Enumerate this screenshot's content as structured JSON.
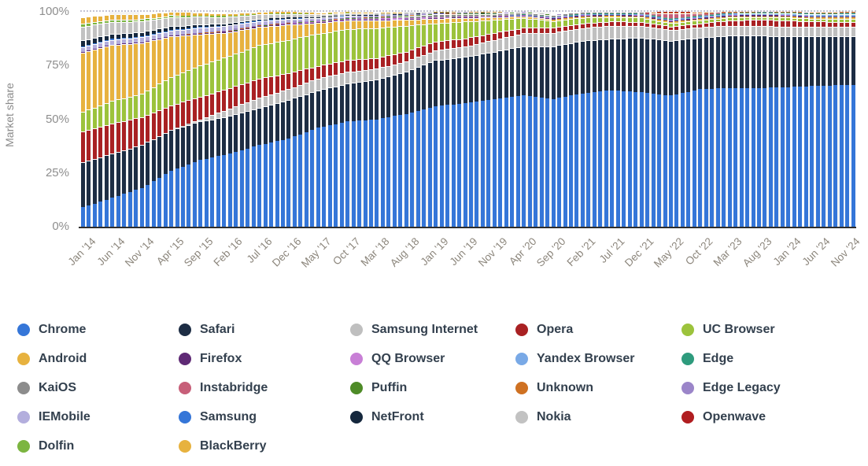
{
  "y_axis": {
    "title": "Market share",
    "ticks": [
      "0%",
      "25%",
      "50%",
      "75%",
      "100%"
    ]
  },
  "chart_data": {
    "type": "bar",
    "stacked": true,
    "unit": "percent",
    "ylim": [
      0,
      100
    ],
    "grid": "dotted line at 100% only",
    "legend_position": "bottom",
    "x_range": {
      "start": "Jan 2014",
      "end": "Dec 2024",
      "months": 132
    },
    "anchor_step_months": 5,
    "x_tick_labels": [
      "Jan '14",
      "Jun '14",
      "Nov '14",
      "Apr '15",
      "Sep '15",
      "Feb '16",
      "Jul '16",
      "Dec '16",
      "May '17",
      "Oct '17",
      "Mar '18",
      "Aug '18",
      "Jan '19",
      "Jun '19",
      "Nov '19",
      "Apr '20",
      "Sep '20",
      "Feb '21",
      "Jul '21",
      "Dec '21",
      "May '22",
      "Oct '22",
      "Mar '23",
      "Aug '23",
      "Jan '24",
      "Jun '24",
      "Nov '24"
    ],
    "series": [
      {
        "name": "Chrome",
        "color": "#3576d8",
        "anchors": [
          9,
          13.5,
          18,
          26,
          31,
          34,
          38,
          41,
          46,
          49,
          50,
          52.5,
          56,
          57.5,
          59.5,
          61,
          59.5,
          62,
          63.5,
          62.5,
          61,
          64,
          64.5,
          64.5,
          65,
          65.5,
          66
        ]
      },
      {
        "name": "Safari",
        "color": "#1d2d44",
        "anchors": [
          21,
          20.5,
          20,
          19,
          18,
          17.5,
          17.5,
          18,
          17.5,
          17.5,
          18.5,
          19.5,
          21.5,
          21.5,
          22,
          23,
          24.5,
          24.5,
          24,
          25.5,
          25.5,
          24,
          24.5,
          24.5,
          23.5,
          23,
          22.8
        ]
      },
      {
        "name": "Samsung Internet",
        "color": "#bfbfbf",
        "anchors": [
          0,
          0,
          0,
          0,
          1,
          3.5,
          4.5,
          5,
          5.5,
          5.5,
          5,
          5,
          4.5,
          4.8,
          5.5,
          6,
          6.3,
          6,
          6,
          5.5,
          5,
          4.8,
          4.6,
          4.5,
          4.5,
          4.4,
          4.3
        ]
      },
      {
        "name": "Opera",
        "color": "#a92123",
        "anchors": [
          14.5,
          14,
          13,
          11.5,
          10.5,
          9.5,
          9,
          7.5,
          5.8,
          5.5,
          5,
          4.5,
          4.2,
          3.8,
          3.2,
          2.6,
          2.3,
          2.1,
          2,
          1.9,
          1.7,
          1.8,
          2.4,
          2.8,
          3,
          2.6,
          2.2
        ]
      },
      {
        "name": "UC Browser",
        "color": "#9cc33c",
        "anchors": [
          9,
          10.5,
          11,
          13,
          14.5,
          15,
          15.5,
          15.5,
          15,
          14.5,
          14,
          12,
          8.5,
          7.9,
          6,
          4.5,
          3.2,
          2.6,
          2.1,
          1.9,
          1.6,
          1.5,
          1.4,
          1.3,
          1.3,
          1.2,
          1.3
        ]
      },
      {
        "name": "Android",
        "color": "#e7b23f",
        "anchors": [
          27.5,
          26,
          23.5,
          19,
          14.5,
          11,
          8.5,
          7,
          5,
          4,
          3.5,
          2.8,
          2.1,
          1.6,
          1.2,
          0.9,
          0.7,
          0.6,
          0.5,
          0.5,
          0.5,
          0.5,
          0.4,
          0.4,
          0.5,
          0.6,
          0.7
        ]
      },
      {
        "name": "Firefox",
        "color": "#5f2a75",
        "anchors": [
          0.3,
          0.3,
          0.4,
          0.4,
          0.4,
          0.4,
          0.4,
          0.4,
          0.3,
          0.3,
          0.3,
          0.3,
          0.3,
          0.3,
          0.3,
          0.3,
          0.5,
          0.5,
          0.5,
          0.5,
          0.5,
          0.5,
          0.5,
          0.5,
          0.5,
          0.5,
          0.5
        ]
      },
      {
        "name": "QQ Browser",
        "color": "#c87fd6",
        "anchors": [
          0,
          0,
          0,
          0,
          0,
          0,
          0,
          0.2,
          0.4,
          0.5,
          0.6,
          0.5,
          0.4,
          0.3,
          0.2,
          0.2,
          0.2,
          0.2,
          0.1,
          0.1,
          0.1,
          0.1,
          0.1,
          0.1,
          0.1,
          0.1,
          0.1
        ]
      },
      {
        "name": "Yandex Browser",
        "color": "#79a9e6",
        "anchors": [
          0,
          0,
          0,
          0,
          0,
          0,
          0,
          0,
          0,
          0,
          0,
          0,
          0,
          0,
          0.1,
          0.2,
          0.3,
          0.4,
          0.4,
          0.5,
          0.5,
          0.6,
          0.7,
          0.8,
          0.8,
          0.9,
          1
        ]
      },
      {
        "name": "Edge",
        "color": "#2e9b7d",
        "anchors": [
          0,
          0,
          0,
          0,
          0,
          0,
          0,
          0,
          0,
          0,
          0,
          0,
          0,
          0,
          0,
          0.1,
          0.1,
          0.2,
          0.2,
          0.2,
          0.3,
          0.3,
          0.3,
          0.3,
          0.4,
          0.4,
          0.5
        ]
      },
      {
        "name": "KaiOS",
        "color": "#8c8c8c",
        "anchors": [
          0,
          0,
          0,
          0,
          0,
          0,
          0,
          0,
          0,
          0,
          0.3,
          0.9,
          1.3,
          1.4,
          1.1,
          0.9,
          0.8,
          0.6,
          0.5,
          0.4,
          0.3,
          0.3,
          0.25,
          0.2,
          0.2,
          0.15,
          0.15
        ]
      },
      {
        "name": "Instabridge",
        "color": "#c75f79",
        "anchors": [
          0,
          0,
          0,
          0,
          0,
          0,
          0,
          0,
          0,
          0,
          0,
          0,
          0,
          0,
          0,
          0,
          0,
          0,
          0,
          0,
          2.2,
          0.9,
          0,
          0,
          0,
          0,
          0
        ]
      },
      {
        "name": "Puffin",
        "color": "#4e8b27",
        "anchors": [
          0,
          0,
          0,
          0,
          0,
          0.1,
          0.1,
          0.1,
          0.2,
          0.2,
          0.2,
          0.2,
          0.1,
          0.1,
          0.1,
          0.1,
          0.1,
          0,
          0,
          0,
          0,
          0,
          0,
          0,
          0,
          0,
          0
        ]
      },
      {
        "name": "Unknown",
        "color": "#cf7122",
        "anchors": [
          0,
          0,
          0,
          0,
          0.2,
          0.3,
          0.2,
          0.2,
          0.1,
          0.1,
          0.1,
          0.1,
          0.1,
          0.1,
          0.1,
          0,
          0,
          0,
          0,
          0,
          0.3,
          0.3,
          0.3,
          0.2,
          0.2,
          0.3,
          0.4
        ]
      },
      {
        "name": "Edge Legacy",
        "color": "#9b85c9",
        "anchors": [
          0,
          0,
          0,
          0.1,
          0.3,
          0.4,
          0.4,
          0.4,
          0.3,
          0.3,
          0.3,
          0.2,
          0.2,
          0.2,
          0.1,
          0.1,
          0.1,
          0,
          0,
          0,
          0,
          0,
          0,
          0,
          0,
          0,
          0
        ]
      },
      {
        "name": "IEMobile",
        "color": "#b3aedd",
        "anchors": [
          2.2,
          2.2,
          2.3,
          2.3,
          2.2,
          2,
          1.7,
          1.4,
          1,
          0.8,
          0.5,
          0.3,
          0.2,
          0.1,
          0.1,
          0,
          0,
          0,
          0,
          0,
          0,
          0,
          0,
          0,
          0,
          0,
          0
        ]
      },
      {
        "name": "Samsung",
        "color": "#3576d8",
        "anchors": [
          0.4,
          0.4,
          0.4,
          0.3,
          0.3,
          0.2,
          0.2,
          0.1,
          0.1,
          0.1,
          0,
          0,
          0,
          0,
          0,
          0,
          0,
          0,
          0,
          0,
          0,
          0,
          0,
          0,
          0,
          0,
          0
        ]
      },
      {
        "name": "NetFront",
        "color": "#15273d",
        "anchors": [
          2.8,
          2.3,
          2,
          1.7,
          1.3,
          1,
          0.8,
          0.6,
          0.4,
          0.3,
          0.2,
          0.2,
          0.1,
          0.1,
          0.1,
          0,
          0,
          0,
          0,
          0,
          0,
          0,
          0,
          0,
          0,
          0,
          0
        ]
      },
      {
        "name": "Nokia",
        "color": "#c2c2c2",
        "anchors": [
          6.5,
          5.5,
          5,
          4.3,
          3.5,
          2.8,
          2,
          1.7,
          1.2,
          0.9,
          0.7,
          0.5,
          0.3,
          0.2,
          0.2,
          0.1,
          0.1,
          0,
          0,
          0,
          0,
          0,
          0,
          0,
          0,
          0,
          0
        ]
      },
      {
        "name": "Openwave",
        "color": "#b01d20",
        "anchors": [
          0,
          0,
          0,
          0,
          0,
          0,
          0,
          0,
          0,
          0,
          0,
          0,
          0,
          0,
          0,
          0,
          0,
          0,
          0,
          0,
          0.8,
          0.1,
          0,
          0,
          0,
          0,
          0
        ]
      },
      {
        "name": "Dolfin",
        "color": "#7cb540",
        "anchors": [
          1.2,
          1.1,
          1,
          0.8,
          0.6,
          0.5,
          0.3,
          0.3,
          0.2,
          0.1,
          0.1,
          0,
          0,
          0,
          0,
          0,
          0,
          0,
          0,
          0,
          0,
          0,
          0,
          0,
          0,
          0,
          0
        ]
      },
      {
        "name": "BlackBerry",
        "color": "#e7b23f",
        "anchors": [
          3.2,
          2.5,
          2.2,
          1.8,
          1.4,
          1.1,
          0.8,
          0.6,
          0.4,
          0.3,
          0.2,
          0.2,
          0.1,
          0.1,
          0.1,
          0,
          0,
          0,
          0,
          0,
          0,
          0,
          0,
          0,
          0,
          0,
          0
        ]
      }
    ]
  }
}
